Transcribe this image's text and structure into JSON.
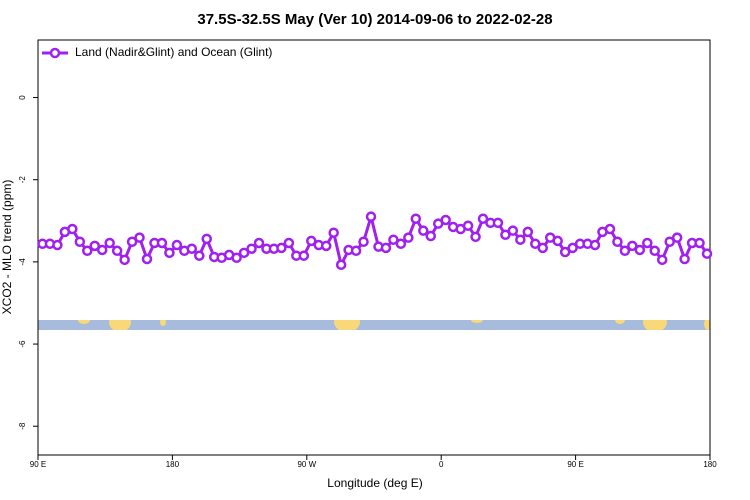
{
  "chart_data": {
    "type": "line",
    "title": "37.5S-32.5S May (Ver 10)   2014-09-06 to 2022-02-28",
    "x_label": "Longitude (deg E)",
    "y_label": "XCO2 - MLO trend (ppm)",
    "x": [
      93,
      98,
      103,
      108,
      113,
      118,
      123,
      128,
      133,
      138,
      143,
      148,
      153,
      158,
      163,
      168,
      173,
      178,
      183,
      188,
      193,
      198,
      203,
      208,
      213,
      218,
      223,
      228,
      233,
      238,
      243,
      248,
      253,
      258,
      263,
      268,
      273,
      278,
      283,
      288,
      293,
      298,
      303,
      308,
      313,
      318,
      323,
      328,
      333,
      338,
      343,
      348,
      353,
      358,
      363,
      368,
      373,
      378,
      383,
      388,
      393,
      398,
      403,
      408,
      413,
      418,
      423,
      428,
      433,
      438,
      443,
      448,
      453,
      458,
      463,
      468,
      473,
      478,
      483,
      488,
      493,
      498,
      503,
      508,
      513,
      518,
      523,
      528,
      533,
      538
    ],
    "series": [
      {
        "name": "Land (Nadir&Glint) and Ocean (Glint)",
        "color": "#a020f0",
        "values": [
          -3.56,
          -3.56,
          -3.59,
          -3.27,
          -3.2,
          -3.51,
          -3.73,
          -3.61,
          -3.71,
          -3.54,
          -3.73,
          -3.95,
          -3.51,
          -3.41,
          -3.93,
          -3.54,
          -3.54,
          -3.78,
          -3.59,
          -3.73,
          -3.68,
          -3.85,
          -3.44,
          -3.88,
          -3.9,
          -3.83,
          -3.9,
          -3.78,
          -3.68,
          -3.54,
          -3.68,
          -3.68,
          -3.66,
          -3.54,
          -3.85,
          -3.85,
          -3.49,
          -3.59,
          -3.61,
          -3.29,
          -4.07,
          -3.71,
          -3.73,
          -3.51,
          -2.9,
          -3.63,
          -3.66,
          -3.46,
          -3.56,
          -3.41,
          -2.95,
          -3.24,
          -3.37,
          -3.07,
          -2.98,
          -3.15,
          -3.2,
          -3.12,
          -3.39,
          -2.95,
          -3.05,
          -3.05,
          -3.34,
          -3.24,
          -3.46,
          -3.27,
          -3.56,
          -3.66,
          -3.41,
          -3.49,
          -3.76,
          -3.66,
          -3.56,
          -3.56,
          -3.59,
          -3.27,
          -3.2,
          -3.51,
          -3.73,
          -3.61,
          -3.71,
          -3.54,
          -3.73,
          -3.95,
          -3.51,
          -3.41,
          -3.93,
          -3.54,
          -3.54,
          -3.8
        ]
      }
    ],
    "xlim": [
      90,
      540
    ],
    "xticks": [
      {
        "value": 90,
        "label": "90 E"
      },
      180,
      {
        "value": 270,
        "label": "90 W"
      },
      {
        "value": 360,
        "label": "0"
      },
      {
        "value": 450,
        "label": "90 E"
      },
      {
        "value": 540,
        "label": "180"
      }
    ],
    "ylim": [
      -8.7,
      1.4
    ],
    "yticks": [
      0,
      -2,
      -4,
      -6,
      -8
    ],
    "legend": "top-left"
  }
}
